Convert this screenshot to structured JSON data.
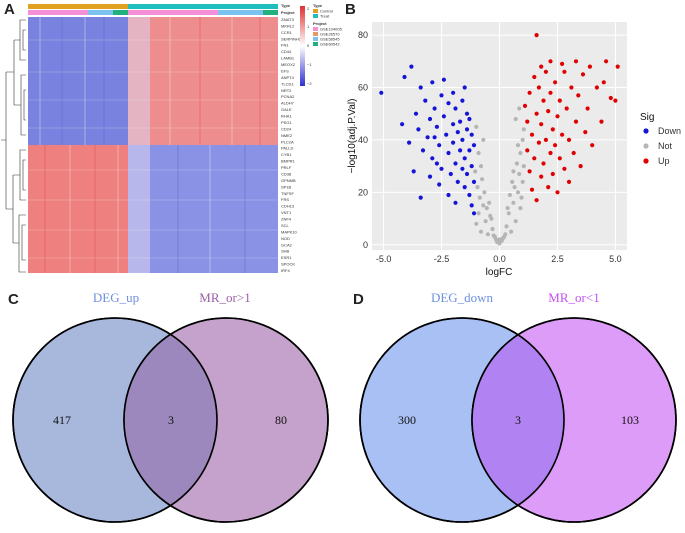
{
  "panels": {
    "a": "A",
    "b": "B",
    "c": "C",
    "d": "D"
  },
  "heatmap": {
    "legend": {
      "type_title": "Type",
      "type_items": [
        {
          "label": "Control",
          "color": "#e0a020"
        },
        {
          "label": "Treat",
          "color": "#1fbfbf"
        }
      ],
      "project_title": "Project",
      "project_items": [
        {
          "label": "GSE104005",
          "color": "#f48fd8"
        },
        {
          "label": "GSE26570",
          "color": "#e39a6b"
        },
        {
          "label": "GSE58545",
          "color": "#7cc2ef"
        },
        {
          "label": "GSE60542",
          "color": "#22b07d"
        }
      ],
      "scale_ticks": [
        "2",
        "1",
        "0",
        "−1",
        "−2"
      ]
    },
    "genes": [
      "ZMAT3",
      "MKRL2",
      "CCR1",
      "SERPINH1",
      "FN1",
      "CD44",
      "LAMB1",
      "MEOX2",
      "EFS",
      "ANPT4",
      "TLCD1",
      "NRT2",
      "PCNA2",
      "ALDH7",
      "GALE",
      "RHA1",
      "PSG1",
      "CD24",
      "NME2",
      "PLC2A",
      "PALLD",
      "CYB1",
      "BMPR1",
      "PRLF",
      "CD38",
      "GPNMB",
      "SP1B",
      "TNFSF",
      "FRS",
      "CDH13",
      "VNT1",
      "ZNF4",
      "SCL",
      "MAPK10",
      "NOD",
      "GCA2",
      "SHB",
      "ESR1",
      "SPOCK",
      "IRF4"
    ]
  },
  "chart_data": {
    "type": "scatter",
    "title": "",
    "xlabel": "logFC",
    "ylabel": "−log10(adj.P.Val)",
    "xlim": [
      -5.5,
      5.5
    ],
    "ylim": [
      -2,
      85
    ],
    "xticks": [
      -5,
      -2.5,
      0,
      2.5,
      5
    ],
    "xtick_labels": [
      "-5.0",
      "-2.5",
      "0.0",
      "2.5",
      "5.0"
    ],
    "yticks": [
      0,
      20,
      40,
      60,
      80
    ],
    "yticks_labels": [
      "0",
      "20",
      "40",
      "60",
      "80"
    ],
    "legend": {
      "title": "Sig",
      "items": [
        {
          "label": "Down",
          "color": "#1515d8"
        },
        {
          "label": "Not",
          "color": "#b5b5b5"
        },
        {
          "label": "Up",
          "color": "#e00000"
        }
      ]
    },
    "series": [
      {
        "name": "Down",
        "color": "#1515d8",
        "points": [
          [
            -5.1,
            58
          ],
          [
            -4.1,
            64
          ],
          [
            -4.2,
            46
          ],
          [
            -3.9,
            39
          ],
          [
            -3.8,
            68
          ],
          [
            -3.6,
            50
          ],
          [
            -3.5,
            44
          ],
          [
            -3.4,
            60
          ],
          [
            -3.3,
            36
          ],
          [
            -3.2,
            55
          ],
          [
            -3.1,
            41
          ],
          [
            -3.0,
            48
          ],
          [
            -2.9,
            62
          ],
          [
            -2.9,
            33
          ],
          [
            -2.8,
            52
          ],
          [
            -2.7,
            45
          ],
          [
            -2.6,
            38
          ],
          [
            -2.5,
            57
          ],
          [
            -2.5,
            29
          ],
          [
            -2.4,
            49
          ],
          [
            -2.3,
            42
          ],
          [
            -2.2,
            35
          ],
          [
            -2.2,
            54
          ],
          [
            -2.1,
            27
          ],
          [
            -2.0,
            46
          ],
          [
            -2.0,
            39
          ],
          [
            -1.9,
            31
          ],
          [
            -1.9,
            52
          ],
          [
            -1.8,
            43
          ],
          [
            -1.8,
            24
          ],
          [
            -1.7,
            36
          ],
          [
            -1.7,
            47
          ],
          [
            -1.6,
            29
          ],
          [
            -1.6,
            40
          ],
          [
            -1.5,
            33
          ],
          [
            -1.5,
            22
          ],
          [
            -1.4,
            44
          ],
          [
            -1.4,
            27
          ],
          [
            -1.3,
            36
          ],
          [
            -1.3,
            19
          ],
          [
            -1.2,
            30
          ],
          [
            -1.2,
            15
          ],
          [
            -1.1,
            24
          ],
          [
            -1.1,
            12
          ],
          [
            -3.4,
            18
          ],
          [
            -2.6,
            23
          ],
          [
            -2.2,
            19
          ],
          [
            -3.0,
            26
          ],
          [
            -1.9,
            16
          ],
          [
            -2.7,
            31
          ],
          [
            -3.7,
            28
          ],
          [
            -2.4,
            63
          ],
          [
            -2.0,
            58
          ],
          [
            -1.6,
            55
          ],
          [
            -1.4,
            50
          ],
          [
            -1.3,
            48
          ],
          [
            -1.2,
            42
          ],
          [
            -1.1,
            38
          ],
          [
            -1.5,
            60
          ],
          [
            -2.8,
            41
          ]
        ]
      },
      {
        "name": "Not",
        "color": "#b5b5b5",
        "points": [
          [
            -1.0,
            8
          ],
          [
            -0.9,
            12
          ],
          [
            -0.8,
            5
          ],
          [
            -0.7,
            15
          ],
          [
            -0.6,
            9
          ],
          [
            -0.5,
            4
          ],
          [
            -0.4,
            11
          ],
          [
            -0.3,
            6
          ],
          [
            -0.2,
            3
          ],
          [
            -0.1,
            1
          ],
          [
            0,
            0.5
          ],
          [
            0.1,
            1.5
          ],
          [
            0.2,
            3
          ],
          [
            0.3,
            7
          ],
          [
            0.4,
            12
          ],
          [
            0.5,
            5
          ],
          [
            0.6,
            16
          ],
          [
            0.7,
            9
          ],
          [
            0.8,
            20
          ],
          [
            0.9,
            14
          ],
          [
            1.0,
            24
          ],
          [
            1.05,
            30
          ],
          [
            0.95,
            18
          ],
          [
            0.85,
            27
          ],
          [
            -0.95,
            22
          ],
          [
            -1.05,
            28
          ],
          [
            -0.85,
            18
          ],
          [
            -0.75,
            25
          ],
          [
            -0.65,
            20
          ],
          [
            -0.55,
            14
          ],
          [
            -0.45,
            16
          ],
          [
            -0.35,
            10
          ],
          [
            0.35,
            14
          ],
          [
            0.45,
            19
          ],
          [
            0.55,
            24
          ],
          [
            0.65,
            22
          ],
          [
            0.75,
            31
          ],
          [
            0.9,
            35
          ],
          [
            1.0,
            40
          ],
          [
            1.05,
            44
          ],
          [
            0.8,
            38
          ],
          [
            -0.9,
            35
          ],
          [
            -1.0,
            45
          ],
          [
            -0.8,
            30
          ],
          [
            -0.7,
            40
          ],
          [
            0.6,
            28
          ],
          [
            0.7,
            48
          ],
          [
            0.85,
            52
          ],
          [
            -0.15,
            2
          ],
          [
            0.15,
            2.5
          ],
          [
            0.25,
            4
          ],
          [
            -0.25,
            3.5
          ],
          [
            0.0,
            2
          ]
        ]
      },
      {
        "name": "Up",
        "color": "#e00000",
        "points": [
          [
            1.6,
            80
          ],
          [
            1.1,
            53
          ],
          [
            1.2,
            47
          ],
          [
            1.2,
            36
          ],
          [
            1.3,
            58
          ],
          [
            1.3,
            28
          ],
          [
            1.4,
            42
          ],
          [
            1.4,
            21
          ],
          [
            1.5,
            64
          ],
          [
            1.5,
            33
          ],
          [
            1.6,
            50
          ],
          [
            1.6,
            17
          ],
          [
            1.7,
            39
          ],
          [
            1.7,
            60
          ],
          [
            1.8,
            26
          ],
          [
            1.8,
            46
          ],
          [
            1.9,
            55
          ],
          [
            1.9,
            31
          ],
          [
            2.0,
            66
          ],
          [
            2.0,
            40
          ],
          [
            2.1,
            22
          ],
          [
            2.1,
            51
          ],
          [
            2.2,
            35
          ],
          [
            2.2,
            58
          ],
          [
            2.3,
            44
          ],
          [
            2.3,
            27
          ],
          [
            2.4,
            62
          ],
          [
            2.4,
            38
          ],
          [
            2.5,
            49
          ],
          [
            2.5,
            20
          ],
          [
            2.6,
            55
          ],
          [
            2.6,
            33
          ],
          [
            2.7,
            42
          ],
          [
            2.8,
            66
          ],
          [
            2.8,
            29
          ],
          [
            2.9,
            52
          ],
          [
            3.0,
            40
          ],
          [
            3.0,
            24
          ],
          [
            3.1,
            60
          ],
          [
            3.2,
            35
          ],
          [
            3.3,
            47
          ],
          [
            3.4,
            57
          ],
          [
            3.5,
            30
          ],
          [
            3.6,
            65
          ],
          [
            3.7,
            43
          ],
          [
            3.8,
            52
          ],
          [
            4.0,
            38
          ],
          [
            4.2,
            60
          ],
          [
            4.4,
            47
          ],
          [
            4.6,
            70
          ],
          [
            4.8,
            56
          ],
          [
            5.1,
            68
          ],
          [
            5.0,
            55
          ],
          [
            4.5,
            62
          ],
          [
            3.9,
            68
          ],
          [
            3.3,
            70
          ],
          [
            2.7,
            69
          ],
          [
            1.8,
            68
          ],
          [
            2.2,
            70
          ]
        ]
      }
    ]
  },
  "venn_c": {
    "left_label": "DEG_up",
    "right_label": "MR_or>1",
    "left_only": "417",
    "overlap": "3",
    "right_only": "80",
    "left_color": "#a8b8dd",
    "right_color": "#c4a2cc",
    "overlap_color": "#9c88bd",
    "left_text_color": "#6e8fe0",
    "right_text_color": "#9a5fa8"
  },
  "venn_d": {
    "left_label": "DEG_down",
    "right_label": "MR_or<1",
    "left_only": "300",
    "overlap": "3",
    "right_only": "103",
    "left_color": "#a8c0f4",
    "right_color": "#dd9cf7",
    "overlap_color": "#b183f2",
    "left_text_color": "#6e8fe0",
    "right_text_color": "#c44ff0"
  }
}
